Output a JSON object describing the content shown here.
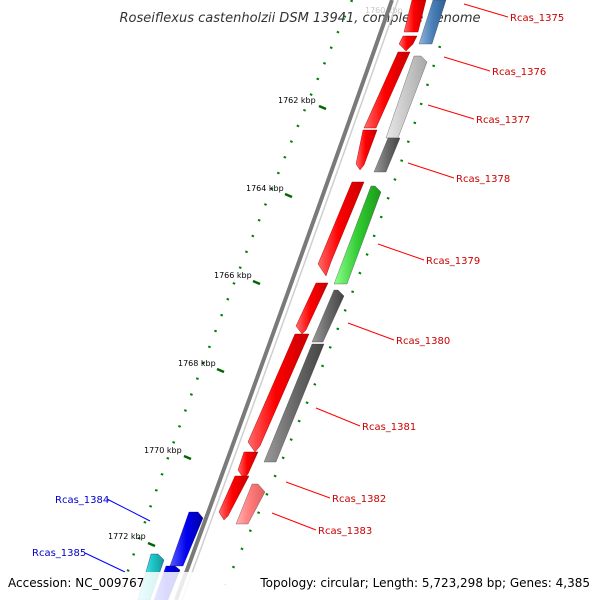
{
  "title": "Roseiflexus castenholzii DSM 13941, complete genome",
  "accession_label": "Accession: NC_009767",
  "footer_info": "Topology: circular; Length: 5,723,298 bp; Genes: 4,385",
  "ticks": [
    "1762 kbp",
    "1764 kbp",
    "1766 kbp",
    "1768 kbp",
    "1770 kbp",
    "1772 kbp"
  ],
  "genes": [
    "Rcas_1375",
    "Rcas_1376",
    "Rcas_1377",
    "Rcas_1378",
    "Rcas_1379",
    "Rcas_1380",
    "Rcas_1381",
    "Rcas_1382",
    "Rcas_1383",
    "Rcas_1384",
    "Rcas_1385"
  ],
  "colors": {
    "forward_gene": "#ff0000",
    "reverse_gene": "#0000ff",
    "label_forward": "#cc0000",
    "label_reverse": "#0000cc",
    "backbone": "#888888",
    "tick_mark": "#008000"
  }
}
